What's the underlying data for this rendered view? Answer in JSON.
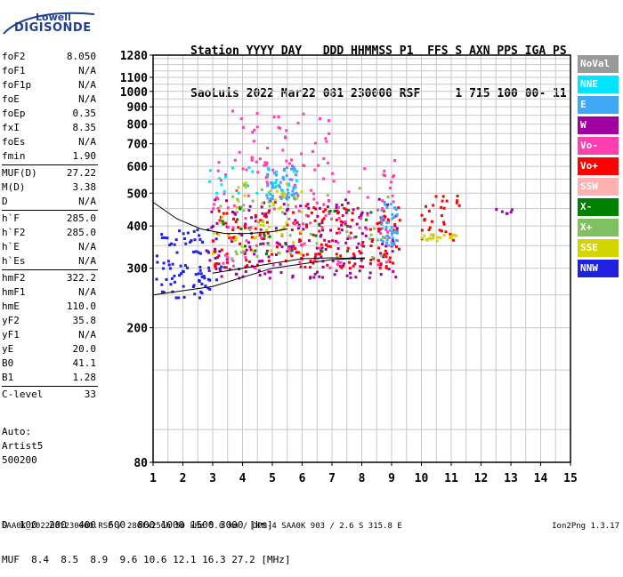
{
  "logo": {
    "line1": "Lowell",
    "line2": "DIGISONDE"
  },
  "header": {
    "labels": "Station YYYY DAY   DDD HHMMSS P1  FFS S AXN PPS IGA PS",
    "values": "SaoLuis 2022 Mar22 081 230000 RSF     1 715 100 00- 11"
  },
  "params": [
    {
      "key": "foF2",
      "value": "8.050"
    },
    {
      "key": "foF1",
      "value": "N/A"
    },
    {
      "key": "foF1p",
      "value": "N/A"
    },
    {
      "key": "foE",
      "value": "N/A"
    },
    {
      "key": "foEp",
      "value": "0.35"
    },
    {
      "key": "fxI",
      "value": "8.35"
    },
    {
      "key": "foEs",
      "value": "N/A"
    },
    {
      "key": "fmin",
      "value": "1.90"
    },
    {
      "key": "MUF(D)",
      "value": "27.22"
    },
    {
      "key": "M(D)",
      "value": "3.38"
    },
    {
      "key": "D",
      "value": "N/A"
    },
    {
      "key": "h`F",
      "value": "285.0"
    },
    {
      "key": "h`F2",
      "value": "285.0"
    },
    {
      "key": "h`E",
      "value": "N/A"
    },
    {
      "key": "h`Es",
      "value": "N/A"
    },
    {
      "key": "hmF2",
      "value": "322.2"
    },
    {
      "key": "hmF1",
      "value": "N/A"
    },
    {
      "key": "hmE",
      "value": "110.0"
    },
    {
      "key": "yF2",
      "value": "35.8"
    },
    {
      "key": "yF1",
      "value": "N/A"
    },
    {
      "key": "yE",
      "value": "20.0"
    },
    {
      "key": "B0",
      "value": "41.1"
    },
    {
      "key": "B1",
      "value": "1.28"
    },
    {
      "key": "C-level",
      "value": "33"
    }
  ],
  "auto": {
    "line1": "Auto:",
    "line2": "Artist5",
    "line3": "500200"
  },
  "legend": [
    {
      "label": "NoVal",
      "color": "#999999"
    },
    {
      "label": "NNE",
      "color": "#00e5ff"
    },
    {
      "label": "E",
      "color": "#3fa9f5"
    },
    {
      "label": "W",
      "color": "#a000a0"
    },
    {
      "label": "Vo-",
      "color": "#ff3fb0"
    },
    {
      "label": "Vo+",
      "color": "#ff0000"
    },
    {
      "label": "SSW",
      "color": "#ffb0b0"
    },
    {
      "label": "X-",
      "color": "#008000"
    },
    {
      "label": "X+",
      "color": "#80c060"
    },
    {
      "label": "SSE",
      "color": "#d4d400"
    },
    {
      "label": "NNW",
      "color": "#2020e0"
    }
  ],
  "muf_table": {
    "d_label": "D",
    "d_values": "  100  200  400  600  800 1000 1500 3000 [km]",
    "m_label": "MUF",
    "m_values": "8.4  8.5  8.9  9.6 10.6 12.1 16.3 27.2 [MHz]"
  },
  "footer": "SAA0K_2022081230000.RSF / 280fx256h 50 kHz 5.0 km / DPS-4 SAA0K 903 / 2.6 S 315.8 E",
  "version": "Ion2Png 1.3.17",
  "chart_data": {
    "type": "scatter",
    "title": "",
    "xlabel": "",
    "ylabel": "",
    "xlim": [
      1,
      15
    ],
    "ylim": [
      80,
      1280
    ],
    "y_scale": "log",
    "x_ticks": [
      1,
      2,
      3,
      4,
      5,
      6,
      7,
      8,
      9,
      10,
      11,
      12,
      13,
      14,
      15
    ],
    "y_ticks": [
      80,
      200,
      300,
      400,
      500,
      600,
      700,
      800,
      900,
      1000,
      1100,
      1280
    ],
    "grid": true,
    "legend_position": "right",
    "clusters": [
      {
        "name": "NNW",
        "color": "#2020e0",
        "x_range": [
          1.1,
          3.3
        ],
        "y_range": [
          245,
          390
        ],
        "count": 90
      },
      {
        "name": "W",
        "color": "#a000a0",
        "x_range": [
          2.8,
          9.3
        ],
        "y_range": [
          280,
          480
        ],
        "count": 200
      },
      {
        "name": "Vo+",
        "color": "#ff0000",
        "x_range": [
          3.0,
          9.3
        ],
        "y_range": [
          300,
          460
        ],
        "count": 170
      },
      {
        "name": "Vo-",
        "color": "#ff3fb0",
        "x_range": [
          3.0,
          9.3
        ],
        "y_range": [
          300,
          650
        ],
        "count": 130
      },
      {
        "name": "E",
        "color": "#3fa9f5",
        "x_range": [
          4.8,
          5.9
        ],
        "y_range": [
          480,
          600
        ],
        "count": 60
      },
      {
        "name": "E",
        "color": "#3fa9f5",
        "x_range": [
          8.6,
          9.2
        ],
        "y_range": [
          350,
          470
        ],
        "count": 45
      },
      {
        "name": "SSE",
        "color": "#d4d400",
        "x_range": [
          3.0,
          6.0
        ],
        "y_range": [
          330,
          560
        ],
        "count": 55
      },
      {
        "name": "X+",
        "color": "#80c060",
        "x_range": [
          3.0,
          9.0
        ],
        "y_range": [
          320,
          520
        ],
        "count": 45
      },
      {
        "name": "X-",
        "color": "#008000",
        "x_range": [
          3.0,
          8.5
        ],
        "y_range": [
          330,
          450
        ],
        "count": 25
      },
      {
        "name": "NNE",
        "color": "#00e5ff",
        "x_range": [
          2.8,
          6.0
        ],
        "y_range": [
          500,
          600
        ],
        "count": 25
      },
      {
        "name": "Vo-",
        "color": "#ff3fb0",
        "x_range": [
          3.5,
          7.0
        ],
        "y_range": [
          600,
          880
        ],
        "count": 40
      },
      {
        "name": "Vo+",
        "color": "#ff0000",
        "x_range": [
          10.0,
          11.3
        ],
        "y_range": [
          360,
          500
        ],
        "count": 30
      },
      {
        "name": "SSE",
        "color": "#d4d400",
        "x_range": [
          10.0,
          11.2
        ],
        "y_range": [
          360,
          380
        ],
        "count": 20
      },
      {
        "name": "W",
        "color": "#a000a0",
        "x_range": [
          12.5,
          13.2
        ],
        "y_range": [
          435,
          450
        ],
        "count": 6
      }
    ],
    "traces": [
      {
        "name": "trace-1",
        "points": [
          [
            1.0,
            250
          ],
          [
            3.0,
            265
          ],
          [
            5.0,
            300
          ],
          [
            7.0,
            318
          ],
          [
            8.1,
            322
          ]
        ]
      },
      {
        "name": "trace-2",
        "points": [
          [
            3.0,
            290
          ],
          [
            5.0,
            310
          ],
          [
            6.0,
            320
          ],
          [
            7.0,
            322
          ],
          [
            8.1,
            320
          ]
        ]
      },
      {
        "name": "trace-3",
        "points": [
          [
            1.0,
            470
          ],
          [
            1.8,
            420
          ],
          [
            2.6,
            392
          ],
          [
            3.4,
            380
          ],
          [
            4.2,
            380
          ],
          [
            5.0,
            385
          ],
          [
            5.5,
            392
          ]
        ]
      }
    ]
  }
}
